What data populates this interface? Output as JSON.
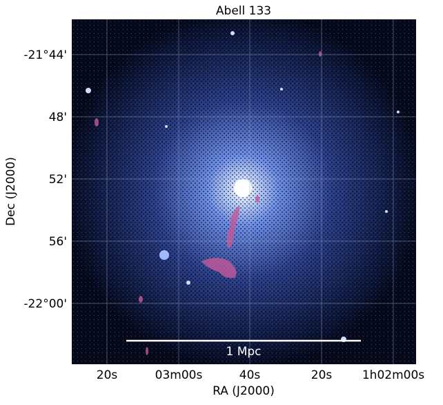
{
  "title": "Abell 133",
  "x_axis": {
    "label": "RA (J2000)",
    "ticks": [
      "20s",
      "03m00s",
      "40s",
      "20s",
      "1h02m00s"
    ]
  },
  "y_axis": {
    "label": "Dec (J2000)",
    "ticks": [
      "-21°44'",
      "48'",
      "52'",
      "56'",
      "-22°00'"
    ]
  },
  "scale_bar": {
    "label": "1 Mpc"
  }
}
